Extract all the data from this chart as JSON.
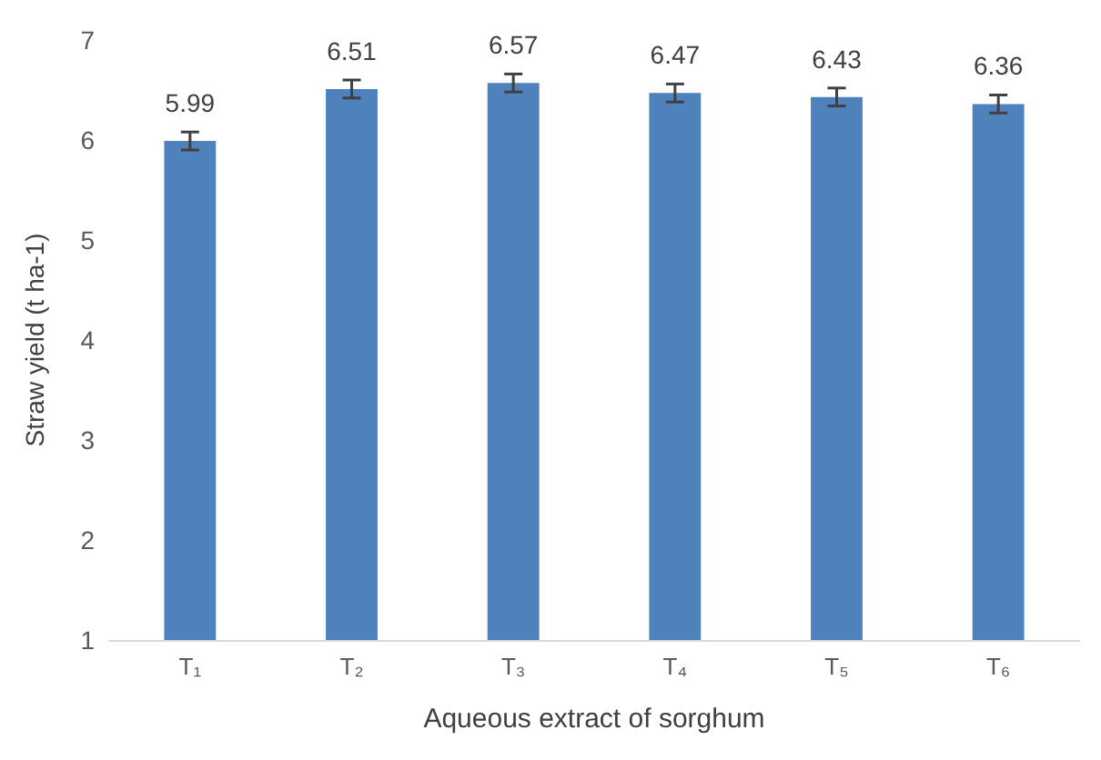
{
  "chart_data": {
    "type": "bar",
    "xlabel": "Aqueous extract of sorghum",
    "ylabel": "Straw yield (t ha-1)",
    "categories": [
      "T₁",
      "T₂",
      "T₃",
      "T₄",
      "T₅",
      "T₆"
    ],
    "values": [
      5.99,
      6.51,
      6.57,
      6.47,
      6.43,
      6.36
    ],
    "errors": [
      0.09,
      0.09,
      0.09,
      0.09,
      0.09,
      0.09
    ],
    "color": "#4f81bd",
    "ylim": [
      1,
      7
    ],
    "yticks": [
      1,
      2,
      3,
      4,
      5,
      6,
      7
    ],
    "grid": false,
    "data_labels": true
  }
}
